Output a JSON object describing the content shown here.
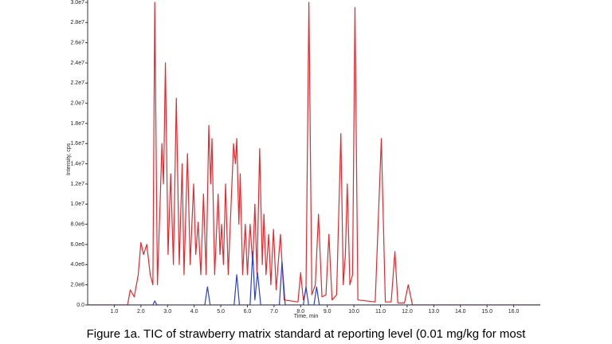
{
  "chart_data": {
    "type": "line",
    "caption": "Figure 1a. TIC of strawberry matrix standard at reporting level (0.01 mg/kg for most",
    "xlabel": "Time, min",
    "ylabel": "Intensity, cps",
    "xlim": [
      0,
      17
    ],
    "ylim": [
      0,
      30000000.0
    ],
    "xticks": [
      {
        "value": 1,
        "label": "1.0"
      },
      {
        "value": 2,
        "label": "2.0"
      },
      {
        "value": 3,
        "label": "3.0"
      },
      {
        "value": 4,
        "label": "4.0"
      },
      {
        "value": 5,
        "label": "5.0"
      },
      {
        "value": 6,
        "label": "6.0"
      },
      {
        "value": 7,
        "label": "7.0"
      },
      {
        "value": 8,
        "label": "8.0"
      },
      {
        "value": 9,
        "label": "9.0"
      },
      {
        "value": 10,
        "label": "10.0"
      },
      {
        "value": 11,
        "label": "11.0"
      },
      {
        "value": 12,
        "label": "12.0"
      },
      {
        "value": 13,
        "label": "13.0"
      },
      {
        "value": 14,
        "label": "14.0"
      },
      {
        "value": 15,
        "label": "15.0"
      },
      {
        "value": 16,
        "label": "16.0"
      }
    ],
    "yticks": [
      {
        "value": 0,
        "label": "0.0"
      },
      {
        "value": 2000000.0,
        "label": "2.0e6"
      },
      {
        "value": 4000000.0,
        "label": "4.0e6"
      },
      {
        "value": 6000000.0,
        "label": "6.0e6"
      },
      {
        "value": 8000000.0,
        "label": "8.0e6"
      },
      {
        "value": 10000000.0,
        "label": "1.0e7"
      },
      {
        "value": 12000000.0,
        "label": "1.2e7"
      },
      {
        "value": 14000000.0,
        "label": "1.4e7"
      },
      {
        "value": 16000000.0,
        "label": "1.6e7"
      },
      {
        "value": 18000000.0,
        "label": "1.8e7"
      },
      {
        "value": 20000000.0,
        "label": "2.0e7"
      },
      {
        "value": 22000000.0,
        "label": "2.2e7"
      },
      {
        "value": 24000000.0,
        "label": "2.4e7"
      },
      {
        "value": 26000000.0,
        "label": "2.6e7"
      },
      {
        "value": 28000000.0,
        "label": "2.8e7"
      },
      {
        "value": 30000000.0,
        "label": "3.0e7"
      }
    ],
    "series": [
      {
        "color": "#e8262b",
        "x": [
          0,
          1.5,
          1.6,
          1.75,
          1.9,
          2.0,
          2.1,
          2.22,
          2.35,
          2.45,
          2.52,
          2.62,
          2.72,
          2.79,
          2.85,
          2.92,
          3.02,
          3.12,
          3.22,
          3.33,
          3.44,
          3.55,
          3.62,
          3.75,
          3.85,
          3.98,
          4.06,
          4.15,
          4.25,
          4.35,
          4.45,
          4.55,
          4.62,
          4.67,
          4.77,
          4.9,
          4.97,
          5.03,
          5.1,
          5.18,
          5.28,
          5.48,
          5.55,
          5.6,
          5.68,
          5.73,
          5.82,
          5.92,
          6.0,
          6.1,
          6.2,
          6.28,
          6.36,
          6.46,
          6.56,
          6.62,
          6.7,
          6.8,
          6.88,
          6.98,
          7.08,
          7.24,
          7.38,
          7.9,
          8.0,
          8.1,
          8.2,
          8.31,
          8.42,
          8.55,
          8.67,
          8.8,
          8.95,
          9.06,
          9.18,
          9.35,
          9.51,
          9.6,
          9.68,
          9.75,
          9.85,
          9.95,
          10.04,
          10.15,
          10.8,
          11.03,
          11.18,
          11.4,
          11.54,
          11.65,
          11.9,
          12.04,
          12.2,
          17
        ],
        "values": [
          0,
          0,
          1500000.0,
          800000.0,
          3000000.0,
          6200000.0,
          5000000.0,
          6000000.0,
          3000000.0,
          2000000.0,
          30000000.0,
          2000000.0,
          10000000.0,
          16000000.0,
          12000000.0,
          24000000.0,
          5000000.0,
          13000000.0,
          4000000.0,
          20500000.0,
          4000000.0,
          14000000.0,
          3000000.0,
          15000000.0,
          4000000.0,
          12000000.0,
          5000000.0,
          8200000.0,
          3000000.0,
          11000000.0,
          3000000.0,
          17800000.0,
          12000000.0,
          16500000.0,
          3000000.0,
          11000000.0,
          5000000.0,
          8000000.0,
          4000000.0,
          12000000.0,
          3000000.0,
          16000000.0,
          14000000.0,
          16500000.0,
          8000000.0,
          13000000.0,
          3000000.0,
          8000000.0,
          3000000.0,
          8000000.0,
          4000000.0,
          10000000.0,
          3000000.0,
          15500000.0,
          4000000.0,
          9000000.0,
          3000000.0,
          7000000.0,
          2000000.0,
          7500000.0,
          1500000.0,
          7000000.0,
          500000.0,
          300000.0,
          3200000.0,
          500000.0,
          1500000.0,
          30000000.0,
          1000000.0,
          2000000.0,
          9000000.0,
          800000.0,
          1000000.0,
          7000000.0,
          500000.0,
          1000000.0,
          17000000.0,
          2000000.0,
          5000000.0,
          12000000.0,
          2000000.0,
          3000000.0,
          29500000.0,
          500000.0,
          300000.0,
          16500000.0,
          300000.0,
          300000.0,
          5300000.0,
          200000.0,
          200000.0,
          2000000.0,
          0,
          0
        ]
      },
      {
        "color": "#2a3fd6",
        "x": [
          0,
          2.45,
          2.52,
          2.6,
          4.4,
          4.5,
          4.6,
          5.5,
          5.6,
          5.7,
          6.1,
          6.2,
          6.28,
          6.38,
          6.5,
          7.2,
          7.3,
          7.42,
          8.1,
          8.2,
          8.3,
          8.5,
          8.6,
          8.7,
          17
        ],
        "values": [
          0,
          0,
          400000.0,
          0,
          0,
          1800000.0,
          0,
          0,
          3000000.0,
          0,
          0,
          5300000.0,
          500000.0,
          3200000.0,
          0,
          0,
          4300000.0,
          0,
          0,
          1800000.0,
          0,
          0,
          1800000.0,
          0,
          0
        ]
      }
    ]
  }
}
